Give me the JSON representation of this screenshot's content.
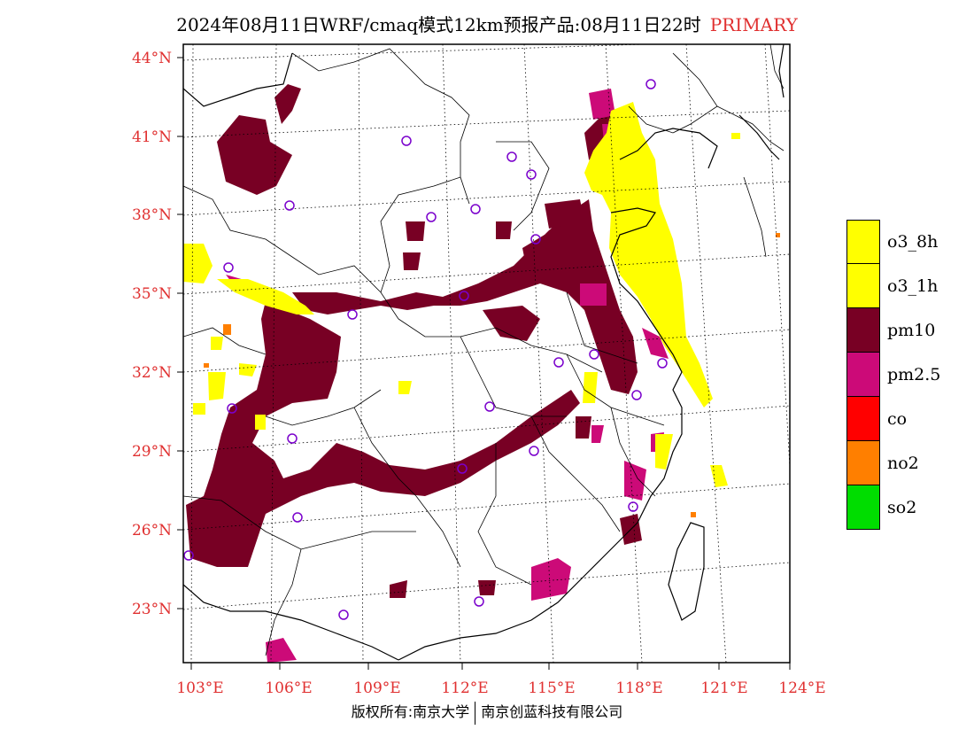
{
  "title": {
    "main": "2024年08月11日WRF/cmaq模式12km预报产品:08月11日22时",
    "tag": "PRIMARY"
  },
  "map": {
    "lat_labels": [
      "44°N",
      "41°N",
      "38°N",
      "35°N",
      "32°N",
      "29°N",
      "26°N",
      "23°N"
    ],
    "lon_labels": [
      "103°E",
      "106°E",
      "109°E",
      "112°E",
      "115°E",
      "118°E",
      "121°E",
      "124°E"
    ],
    "colors": {
      "o3_8h": "#ffff00",
      "o3_1h": "#ffff00",
      "pm10": "#780024",
      "pm25": "#cc0a78",
      "co": "#ff0000",
      "no2": "#ff7f00",
      "so2": "#00dd00",
      "station": "#7a00cc",
      "label": "#e03030"
    }
  },
  "legend": [
    {
      "label": "o3_8h",
      "color": "#ffff00"
    },
    {
      "label": "o3_1h",
      "color": "#ffff00"
    },
    {
      "label": "pm10",
      "color": "#780024"
    },
    {
      "label": "pm2.5",
      "color": "#cc0a78"
    },
    {
      "label": "co",
      "color": "#ff0000"
    },
    {
      "label": "no2",
      "color": "#ff7f00"
    },
    {
      "label": "so2",
      "color": "#00dd00"
    }
  ],
  "footer": {
    "left": "版权所有:南京大学",
    "right": "南京创蓝科技有限公司"
  }
}
